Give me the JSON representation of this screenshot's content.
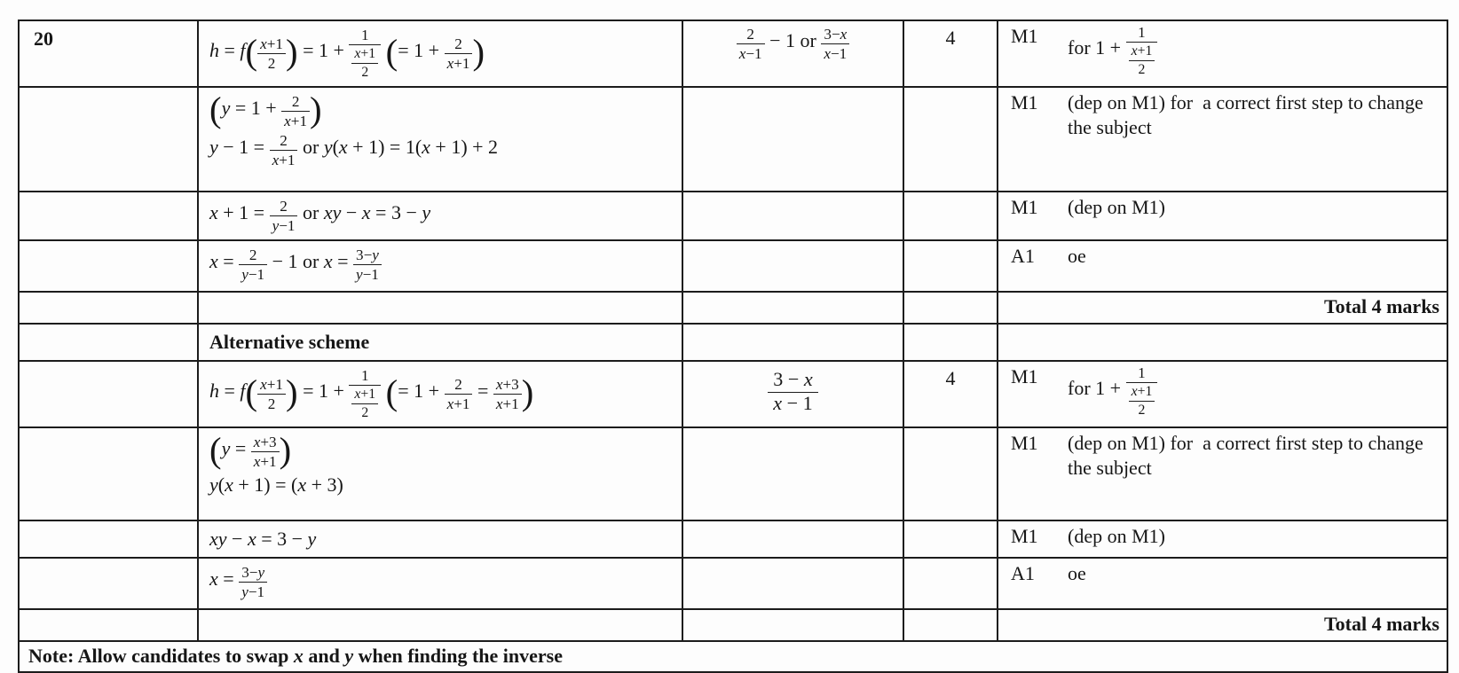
{
  "document": {
    "kind": "mark-scheme-table",
    "question_number": "20",
    "total_marks_label": "Total 4 marks",
    "footnote": "Note: Allow candidates to swap *x* and *y* when finding the inverse"
  },
  "rows": [
    {
      "type": "row",
      "qno": "20",
      "working": [
        {
          "t": "h = f@(#{x+1}{2}@) = 1 + #{1}{#{x+1}{2}} @(= 1 + #{2}{x+1}@)",
          "mode": "math"
        }
      ],
      "answer": {
        "t": "#{2}{x−1} − 1 or #{3−x}{x−1}"
      },
      "mark": "4",
      "code": "M1",
      "note": {
        "t": "for 1 + #{1}{#{x+1}{2}}",
        "mode": "text"
      }
    },
    {
      "type": "row",
      "working": [
        {
          "t": "@(y = 1 + #{2}{x+1}@)",
          "mode": "math"
        },
        {
          "t": "y − 1 = #{2}{x+1} or y(x + 1) = 1(x + 1) + 2",
          "mode": "math"
        }
      ],
      "code": "M1",
      "note": {
        "t": "(dep on M1) for  a correct first step to change the subject",
        "mode": "text"
      }
    },
    {
      "type": "row",
      "working": [
        {
          "t": "x + 1 = #{2}{y−1} or xy − x = 3 − y",
          "mode": "math"
        }
      ],
      "code": "M1",
      "note": {
        "t": "(dep on M1)",
        "mode": "text"
      }
    },
    {
      "type": "row",
      "working": [
        {
          "t": "x = #{2}{y−1} − 1 or x = #{3−y}{y−1}",
          "mode": "math"
        }
      ],
      "code": "A1",
      "note": {
        "t": "oe",
        "mode": "text"
      }
    },
    {
      "type": "total",
      "t": "Total 4 marks"
    },
    {
      "type": "row",
      "working": [
        {
          "t": "Alternative scheme",
          "mode": "text",
          "bold": true
        }
      ]
    },
    {
      "type": "row",
      "working": [
        {
          "t": "h = f@(#{x+1}{2}@) = 1 + #{1}{#{x+1}{2}} @(= 1 + #{2}{x+1} = #{x+3}{x+1}@)",
          "mode": "math"
        }
      ],
      "answer": {
        "t": "#{3 − x}{x − 1}",
        "large": true
      },
      "mark": "4",
      "code": "M1",
      "note": {
        "t": "for 1 + #{1}{#{x+1}{2}}",
        "mode": "text"
      }
    },
    {
      "type": "row",
      "working": [
        {
          "t": "@(y = #{x+3}{x+1}@)",
          "mode": "math"
        },
        {
          "t": "y(x + 1) = (x + 3)",
          "mode": "math"
        }
      ],
      "code": "M1",
      "note": {
        "t": "(dep on M1) for  a correct first step to change the subject",
        "mode": "text"
      }
    },
    {
      "type": "row",
      "working": [
        {
          "t": "xy − x = 3 − y",
          "mode": "math"
        }
      ],
      "code": "M1",
      "note": {
        "t": "(dep on M1)",
        "mode": "text"
      }
    },
    {
      "type": "row",
      "working": [
        {
          "t": "x = #{3−y}{y−1}",
          "mode": "math"
        }
      ],
      "code": "A1",
      "note": {
        "t": "oe",
        "mode": "text"
      }
    },
    {
      "type": "total",
      "t": "Total 4 marks"
    },
    {
      "type": "note",
      "t": "Note: Allow candidates to swap *x* and *y* when finding the inverse"
    }
  ]
}
